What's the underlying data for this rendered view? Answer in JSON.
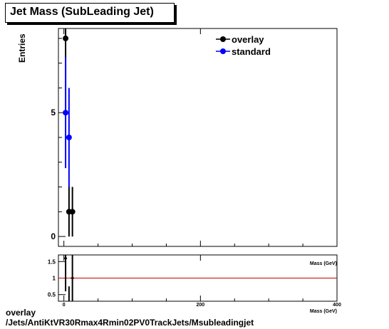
{
  "chart_data": [
    {
      "type": "scatter",
      "title": "Jet Mass (SubLeading Jet)",
      "xlabel": "Mass (GeV)",
      "ylabel": "Entries",
      "xlim": [
        -8,
        400
      ],
      "ylim": [
        -0.4,
        8.4
      ],
      "xticks": [
        0,
        200,
        400
      ],
      "yticks": [
        0,
        5
      ],
      "legend_position": "top-right",
      "series": [
        {
          "name": "overlay",
          "color": "#000000",
          "x": [
            2.5,
            7.5,
            12.5
          ],
          "y": [
            8,
            1,
            1
          ],
          "err": [
            2.83,
            1,
            1
          ]
        },
        {
          "name": "standard",
          "color": "#0000ff",
          "x": [
            2.5,
            7.5
          ],
          "y": [
            5,
            4
          ],
          "err": [
            2.24,
            2
          ]
        }
      ]
    },
    {
      "type": "scatter",
      "title": "",
      "xlabel": "Mass (GeV)",
      "ylabel": "",
      "xlim": [
        -8,
        400
      ],
      "ylim": [
        0.3,
        1.7
      ],
      "xticks": [
        0,
        200,
        400
      ],
      "yticks": [
        0.5,
        1,
        1.5
      ],
      "reference_line": 1,
      "reference_color": "#cc0000",
      "series": [
        {
          "name": "",
          "color": "#000000",
          "x": [
            2.5,
            7.5,
            12.5
          ],
          "y": [
            1.6,
            0.25,
            1.0
          ],
          "err": [
            1.0,
            0.5,
            2.0
          ]
        }
      ]
    }
  ],
  "footer": {
    "line1": "overlay",
    "line2": "/Jets/AntiKtVR30Rmax4Rmin02PV0TrackJets/Msubleadingjet"
  }
}
